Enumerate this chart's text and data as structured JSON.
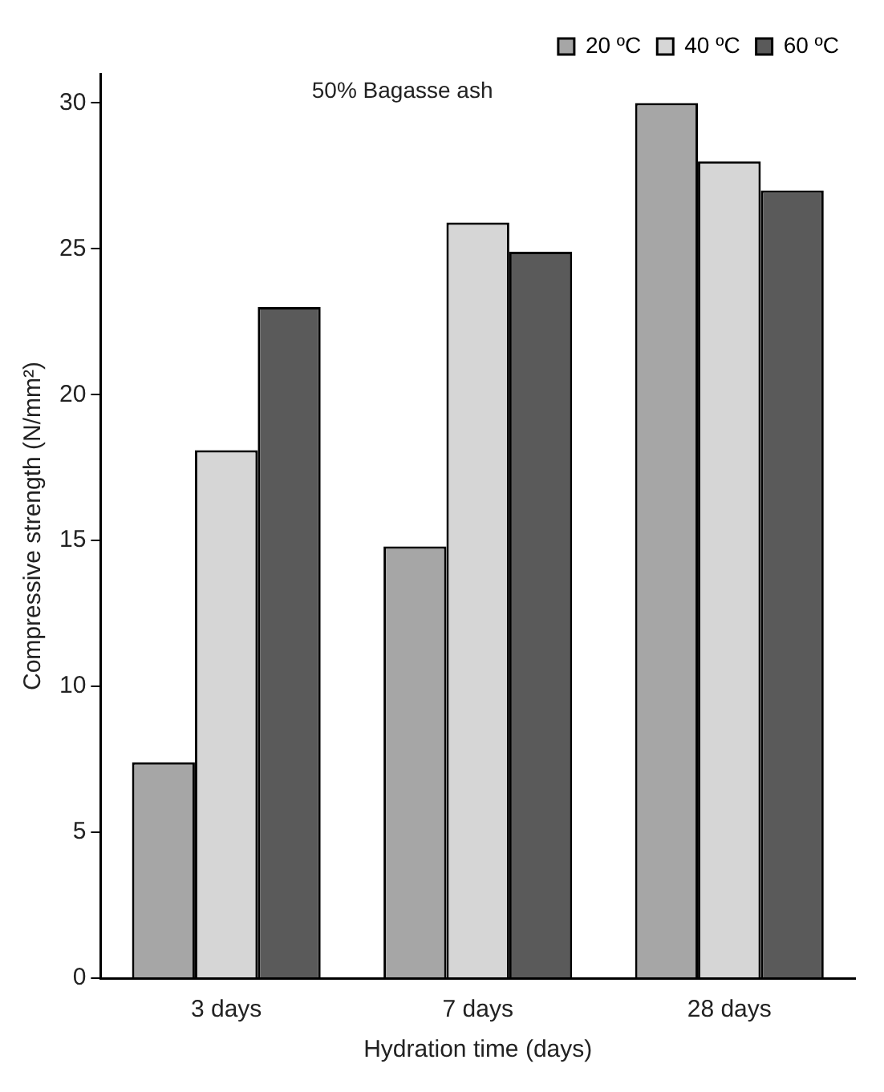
{
  "chart_data": {
    "type": "bar",
    "xlabel": "Hydration time (days)",
    "ylabel": "Compressive strength (N/mm²)",
    "annotations": [
      "50% Bagasse ash"
    ],
    "categories": [
      "3 days",
      "7 days",
      "28 days"
    ],
    "series": [
      {
        "name": "20 ºC",
        "color": "#a6a6a6",
        "values": [
          7.4,
          14.8,
          30
        ]
      },
      {
        "name": "40 ºC",
        "color": "#d6d6d6",
        "values": [
          18.1,
          25.9,
          28
        ]
      },
      {
        "name": "60 ºC",
        "color": "#5a5a5a",
        "values": [
          23,
          24.9,
          27
        ]
      }
    ],
    "ylim": [
      0,
      31
    ],
    "yticks": [
      0,
      5,
      10,
      15,
      20,
      25,
      30
    ],
    "grid": false,
    "legend": "top right"
  }
}
